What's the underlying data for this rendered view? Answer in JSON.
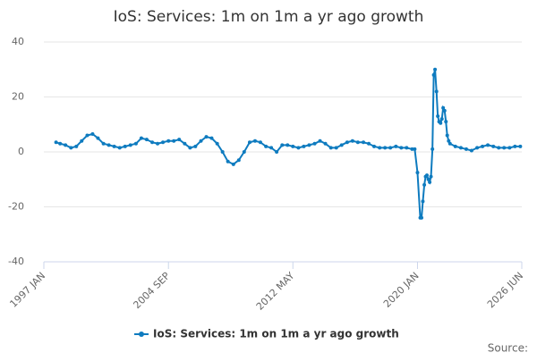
{
  "chart_data": {
    "type": "line",
    "title": "IoS: Services: 1m on 1m a yr ago growth",
    "source": "Source:",
    "x": [
      1997.75,
      1998.0,
      1998.33,
      1998.67,
      1999.0,
      1999.33,
      1999.67,
      2000.0,
      2000.33,
      2000.67,
      2001.0,
      2001.33,
      2001.67,
      2002.0,
      2002.33,
      2002.67,
      2003.0,
      2003.33,
      2003.67,
      2004.0,
      2004.33,
      2004.67,
      2005.0,
      2005.33,
      2005.67,
      2006.0,
      2006.33,
      2006.67,
      2007.0,
      2007.33,
      2007.67,
      2008.0,
      2008.33,
      2008.67,
      2009.0,
      2009.33,
      2009.67,
      2010.0,
      2010.33,
      2010.67,
      2011.0,
      2011.33,
      2011.67,
      2012.0,
      2012.33,
      2012.67,
      2013.0,
      2013.33,
      2013.67,
      2014.0,
      2014.33,
      2014.67,
      2015.0,
      2015.33,
      2015.67,
      2016.0,
      2016.33,
      2016.67,
      2017.0,
      2017.33,
      2017.67,
      2018.0,
      2018.33,
      2018.67,
      2019.0,
      2019.33,
      2019.67,
      2019.83,
      2020.0,
      2020.17,
      2020.25,
      2020.33,
      2020.42,
      2020.5,
      2020.58,
      2020.67,
      2020.75,
      2020.83,
      2020.92,
      2021.0,
      2021.08,
      2021.17,
      2021.25,
      2021.33,
      2021.42,
      2021.5,
      2021.58,
      2021.67,
      2021.75,
      2021.83,
      2021.92,
      2022.0,
      2022.33,
      2022.67,
      2023.0,
      2023.33,
      2023.67,
      2024.0,
      2024.33,
      2024.67,
      2025.0,
      2025.33,
      2025.67,
      2026.0,
      2026.33
    ],
    "series": [
      {
        "name": "IoS: Services: 1m on 1m a yr ago growth",
        "color": "#0e7bbf",
        "values": [
          3.5,
          3,
          2.5,
          1.5,
          2,
          4,
          6,
          6.5,
          5,
          3,
          2.5,
          2,
          1.5,
          2,
          2.5,
          3,
          5,
          4.5,
          3.5,
          3,
          3.5,
          4,
          4,
          4.5,
          3,
          1.5,
          2,
          4,
          5.5,
          5,
          3,
          0,
          -3.5,
          -4.5,
          -3,
          0,
          3.5,
          4,
          3.5,
          2,
          1.5,
          0,
          2.5,
          2.5,
          2,
          1.5,
          2,
          2.5,
          3,
          4,
          3,
          1.5,
          1.5,
          2.5,
          3.5,
          4,
          3.5,
          3.5,
          3,
          2,
          1.5,
          1.5,
          1.5,
          2,
          1.5,
          1.5,
          1,
          1,
          -7.5,
          -24,
          -24,
          -18,
          -12,
          -9,
          -8.5,
          -10,
          -11,
          -9,
          1,
          28,
          30,
          22,
          13,
          11,
          10.5,
          12,
          16,
          15,
          11,
          6,
          4,
          3,
          2,
          1.5,
          1,
          0.5,
          1.5,
          2,
          2.5,
          2,
          1.5,
          1.5,
          1.5,
          2,
          2
        ]
      }
    ],
    "xlim": [
      1997.0,
      2026.42
    ],
    "xticks": [
      {
        "value": 1997.0,
        "label": "1997 JAN"
      },
      {
        "value": 2004.67,
        "label": "2004 SEP"
      },
      {
        "value": 2012.33,
        "label": "2012 MAY"
      },
      {
        "value": 2020.0,
        "label": "2020 JAN"
      },
      {
        "value": 2026.42,
        "label": "2026 JUN"
      }
    ],
    "ylim": [
      -40,
      40
    ],
    "yticks": [
      -40,
      -20,
      0,
      20,
      40
    ],
    "grid": true
  }
}
